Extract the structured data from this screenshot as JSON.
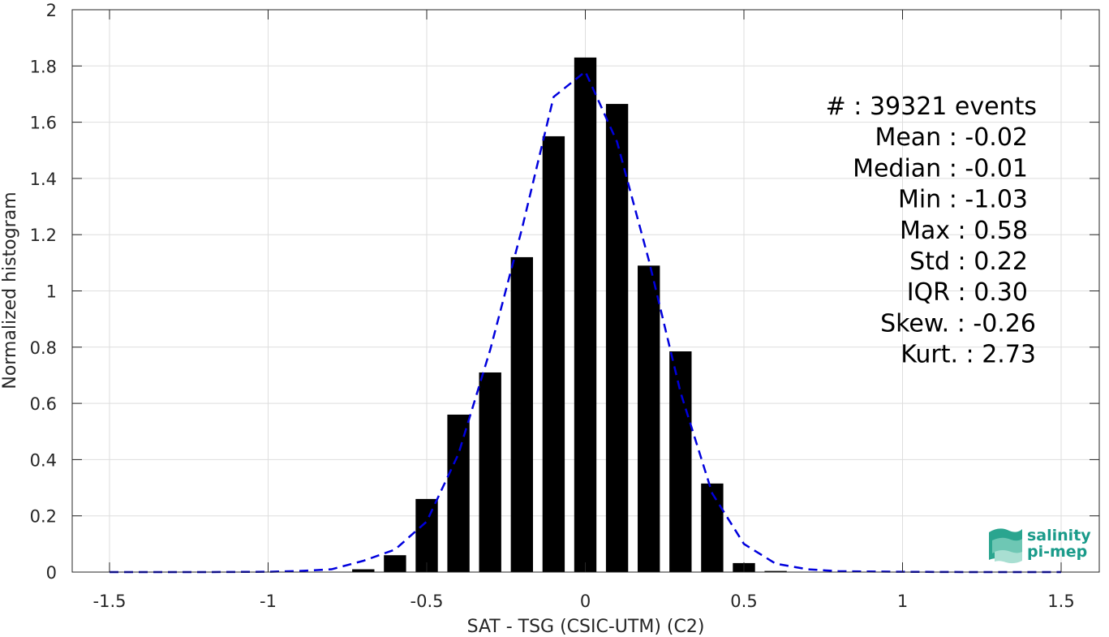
{
  "chart_data": {
    "type": "bar",
    "xlabel": "SAT - TSG (CSIC-UTM) (C2)",
    "ylabel": "Normalized histogram",
    "xlim": [
      -1.5,
      1.5
    ],
    "ylim": [
      0,
      2
    ],
    "x_ticks": [
      -1.5,
      -1,
      -0.5,
      0,
      0.5,
      1,
      1.5
    ],
    "x_tick_labels": [
      "-1.5",
      "-1",
      "-0.5",
      "0",
      "0.5",
      "1",
      "1.5"
    ],
    "y_ticks": [
      0,
      0.2,
      0.4,
      0.6,
      0.8,
      1,
      1.2,
      1.4,
      1.6,
      1.8,
      2
    ],
    "y_tick_labels": [
      "0",
      "0.2",
      "0.4",
      "0.6",
      "0.8",
      "1",
      "1.2",
      "1.4",
      "1.6",
      "1.8",
      "2"
    ],
    "grid": true,
    "bar_width": 0.07,
    "bars": {
      "x": [
        -0.7,
        -0.6,
        -0.5,
        -0.4,
        -0.3,
        -0.2,
        -0.1,
        0.0,
        0.1,
        0.2,
        0.3,
        0.4,
        0.5,
        0.6
      ],
      "values": [
        0.01,
        0.06,
        0.26,
        0.56,
        0.71,
        1.12,
        1.55,
        1.83,
        1.665,
        1.09,
        0.785,
        0.315,
        0.032,
        0.004
      ],
      "color": "#000000"
    },
    "fit_curve": {
      "style": "dashed",
      "color": "#0000dd",
      "x": [
        -1.5,
        -1.2,
        -1.0,
        -0.9,
        -0.8,
        -0.7,
        -0.6,
        -0.5,
        -0.4,
        -0.3,
        -0.2,
        -0.1,
        0.0,
        0.1,
        0.2,
        0.3,
        0.4,
        0.5,
        0.6,
        0.7,
        0.8,
        1.0,
        1.2,
        1.5
      ],
      "y": [
        0,
        0,
        0.001,
        0.004,
        0.01,
        0.04,
        0.08,
        0.18,
        0.42,
        0.79,
        1.22,
        1.69,
        1.78,
        1.53,
        1.11,
        0.64,
        0.28,
        0.1,
        0.03,
        0.01,
        0.003,
        0.001,
        0,
        0
      ]
    },
    "annotations": [
      {
        "label": "#",
        "value": "  : 39321 events"
      },
      {
        "label": "Mean",
        "value": " : -0.02"
      },
      {
        "label": "Median",
        "value": " : -0.01"
      },
      {
        "label": "Min",
        "value": " : -1.03"
      },
      {
        "label": "Max",
        "value": " : 0.58"
      },
      {
        "label": "Std",
        "value": " : 0.22"
      },
      {
        "label": "IQR",
        "value": " : 0.30"
      },
      {
        "label": "Skew.",
        "value": " : -0.26"
      },
      {
        "label": "Kurt.",
        "value": " : 2.73"
      }
    ]
  },
  "logo": {
    "line1": "salinity",
    "line2": "pi-mep",
    "color": "#1a9b8a"
  }
}
